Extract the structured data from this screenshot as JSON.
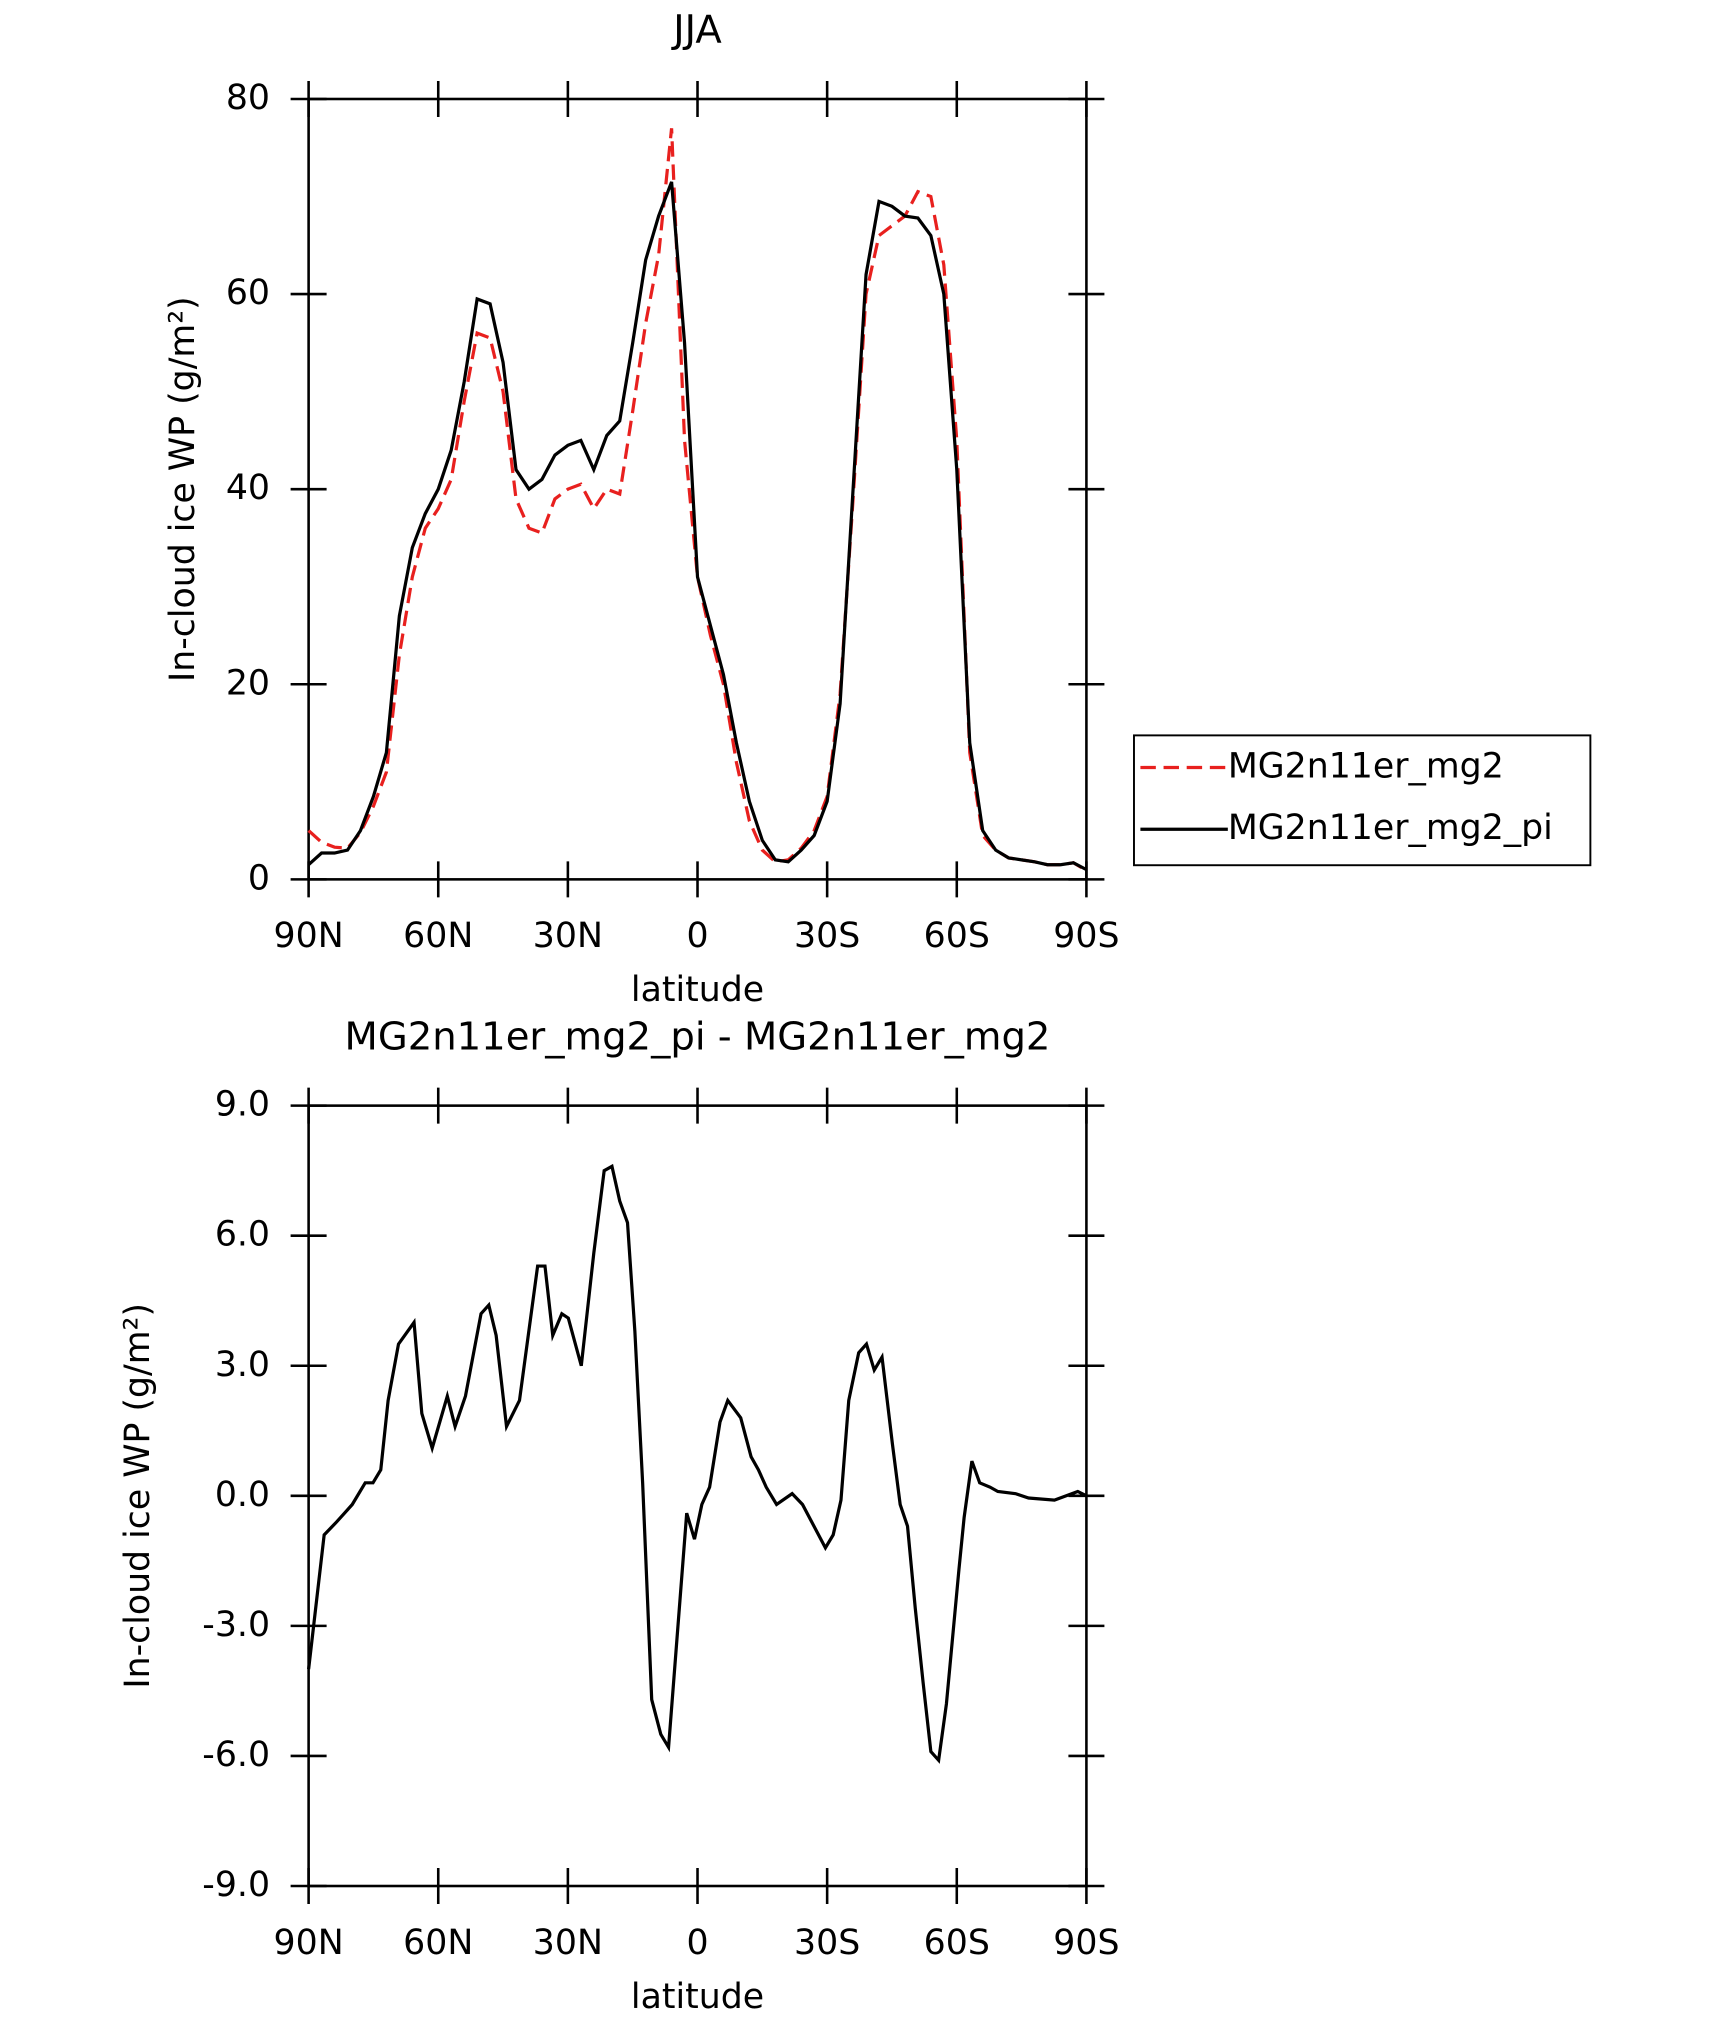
{
  "chart_data": [
    {
      "type": "line",
      "title": "JJA",
      "xlabel": "latitude",
      "ylabel": "In-cloud ice WP (g/m²)",
      "x": [
        90,
        87,
        84,
        81,
        78,
        75,
        72,
        69,
        66,
        63,
        60,
        57,
        54,
        51,
        48,
        45,
        42,
        39,
        36,
        33,
        30,
        27,
        24,
        21,
        18,
        15,
        12,
        9,
        6,
        3,
        0,
        -3,
        -6,
        -9,
        -12,
        -15,
        -18,
        -21,
        -24,
        -27,
        -30,
        -33,
        -36,
        -39,
        -42,
        -45,
        -48,
        -51,
        -54,
        -57,
        -60,
        -63,
        -66,
        -69,
        -72,
        -75,
        -78,
        -81,
        -84,
        -87,
        -90
      ],
      "series": [
        {
          "name": "MG2n11er_mg2",
          "color": "#e8201e",
          "dash": true,
          "values": [
            5,
            3.8,
            3.3,
            3.2,
            4.8,
            7.5,
            11,
            23,
            31,
            36,
            38,
            41,
            49,
            56,
            55.5,
            50,
            39,
            36,
            35.5,
            39,
            40,
            40.5,
            38,
            40,
            39.5,
            48,
            57,
            64,
            77,
            45,
            31,
            25,
            20,
            12,
            6,
            3,
            1.8,
            2,
            3.2,
            5,
            8.5,
            19,
            39,
            60,
            66,
            67,
            68,
            70.5,
            70,
            63,
            45,
            13,
            4.5,
            3,
            2.2,
            2,
            1.8,
            1.5,
            1.5,
            1.7,
            0.9
          ]
        },
        {
          "name": "MG2n11er_mg2_pi",
          "color": "#000000",
          "dash": false,
          "values": [
            1.5,
            2.7,
            2.7,
            3,
            5,
            8.5,
            13,
            27,
            34,
            37.5,
            40,
            44,
            51,
            59.5,
            59,
            53,
            42,
            40,
            41,
            43.5,
            44.5,
            45,
            42,
            45.5,
            47,
            55,
            63.5,
            68,
            71.5,
            55,
            31,
            26,
            21,
            14,
            8,
            4,
            2,
            1.8,
            3,
            4.5,
            8,
            18,
            40,
            62,
            69.5,
            69,
            68,
            67.8,
            66,
            60,
            42,
            14,
            5,
            3,
            2.2,
            2,
            1.8,
            1.5,
            1.5,
            1.7,
            1
          ]
        }
      ],
      "xlim": [
        90,
        -90
      ],
      "ylim": [
        0,
        80
      ],
      "xticks": [
        {
          "value": 90,
          "label": "90N"
        },
        {
          "value": 60,
          "label": "60N"
        },
        {
          "value": 30,
          "label": "30N"
        },
        0,
        {
          "value": -30,
          "label": "30S"
        },
        {
          "value": -60,
          "label": "60S"
        },
        {
          "value": -90,
          "label": "90S"
        }
      ],
      "yticks": [
        0,
        20,
        40,
        60,
        80
      ],
      "legend": "right"
    },
    {
      "type": "line",
      "title": "MG2n11er_mg2_pi - MG2n11er_mg2",
      "xlabel": "latitude",
      "ylabel": "In-cloud ice WP (g/m²)",
      "x": [
        90,
        86.4,
        83.5,
        81.7,
        79.9,
        76.9,
        75.1,
        73.3,
        71.6,
        69.2,
        65.6,
        63.8,
        61.4,
        57.9,
        56.1,
        53.7,
        50.1,
        48.3,
        46.6,
        44.2,
        41.2,
        37,
        35.3,
        33.5,
        31.4,
        29.9,
        26.9,
        24,
        21.6,
        19.8,
        18,
        16.2,
        14.5,
        12.7,
        10.6,
        8.5,
        6.7,
        2.5,
        0.7,
        -1,
        -2.8,
        -5.2,
        -7,
        -10,
        -12.4,
        -14.1,
        -15.9,
        -18.3,
        -21.9,
        -24.3,
        -29.6,
        -31.4,
        -33.2,
        -35,
        -37.3,
        -39.1,
        -40.9,
        -42.7,
        -45.1,
        -46.9,
        -48.6,
        -50.4,
        -52.2,
        -54,
        -55.8,
        -57.6,
        -60.5,
        -61.7,
        -63.5,
        -65.3,
        -67.7,
        -69.5,
        -73.6,
        -76.6,
        -82.6,
        -88,
        -90
      ],
      "series": [
        {
          "color": "#000000",
          "dash": false,
          "values": [
            -4,
            -0.9,
            -0.6,
            -0.4,
            -0.2,
            0.3,
            0.3,
            0.6,
            2.2,
            3.5,
            4,
            1.9,
            1.1,
            2.3,
            1.6,
            2.3,
            4.2,
            4.4,
            3.7,
            1.6,
            2.2,
            5.3,
            5.3,
            3.7,
            4.2,
            4.1,
            3,
            5.6,
            7.5,
            7.6,
            6.8,
            6.3,
            3.8,
            0.3,
            -4.7,
            -5.5,
            -5.8,
            -0.4,
            -1,
            -0.2,
            0.2,
            1.7,
            2.2,
            1.8,
            0.9,
            0.6,
            0.2,
            -0.2,
            0.05,
            -0.2,
            -1.2,
            -0.9,
            -0.1,
            2.2,
            3.3,
            3.5,
            2.9,
            3.2,
            1.2,
            -0.2,
            -0.7,
            -2.6,
            -4.3,
            -5.9,
            -6.1,
            -4.8,
            -1.7,
            -0.5,
            0.8,
            0.3,
            0.2,
            0.1,
            0.05,
            -0.05,
            -0.1,
            0.1,
            0
          ]
        }
      ],
      "xlim": [
        90,
        -90
      ],
      "ylim": [
        -9,
        9
      ],
      "xticks": [
        {
          "value": 90,
          "label": "90N"
        },
        {
          "value": 60,
          "label": "60N"
        },
        {
          "value": 30,
          "label": "30N"
        },
        0,
        {
          "value": -30,
          "label": "30S"
        },
        {
          "value": -60,
          "label": "60S"
        },
        {
          "value": -90,
          "label": "90S"
        }
      ],
      "yticks": [
        {
          "value": -9,
          "label": "-9.0"
        },
        {
          "value": -6,
          "label": "-6.0"
        },
        {
          "value": -3,
          "label": "-3.0"
        },
        {
          "value": 0,
          "label": "0.0"
        },
        {
          "value": 3,
          "label": "3.0"
        },
        {
          "value": 6,
          "label": "6.0"
        },
        {
          "value": 9,
          "label": "9.0"
        }
      ]
    }
  ]
}
